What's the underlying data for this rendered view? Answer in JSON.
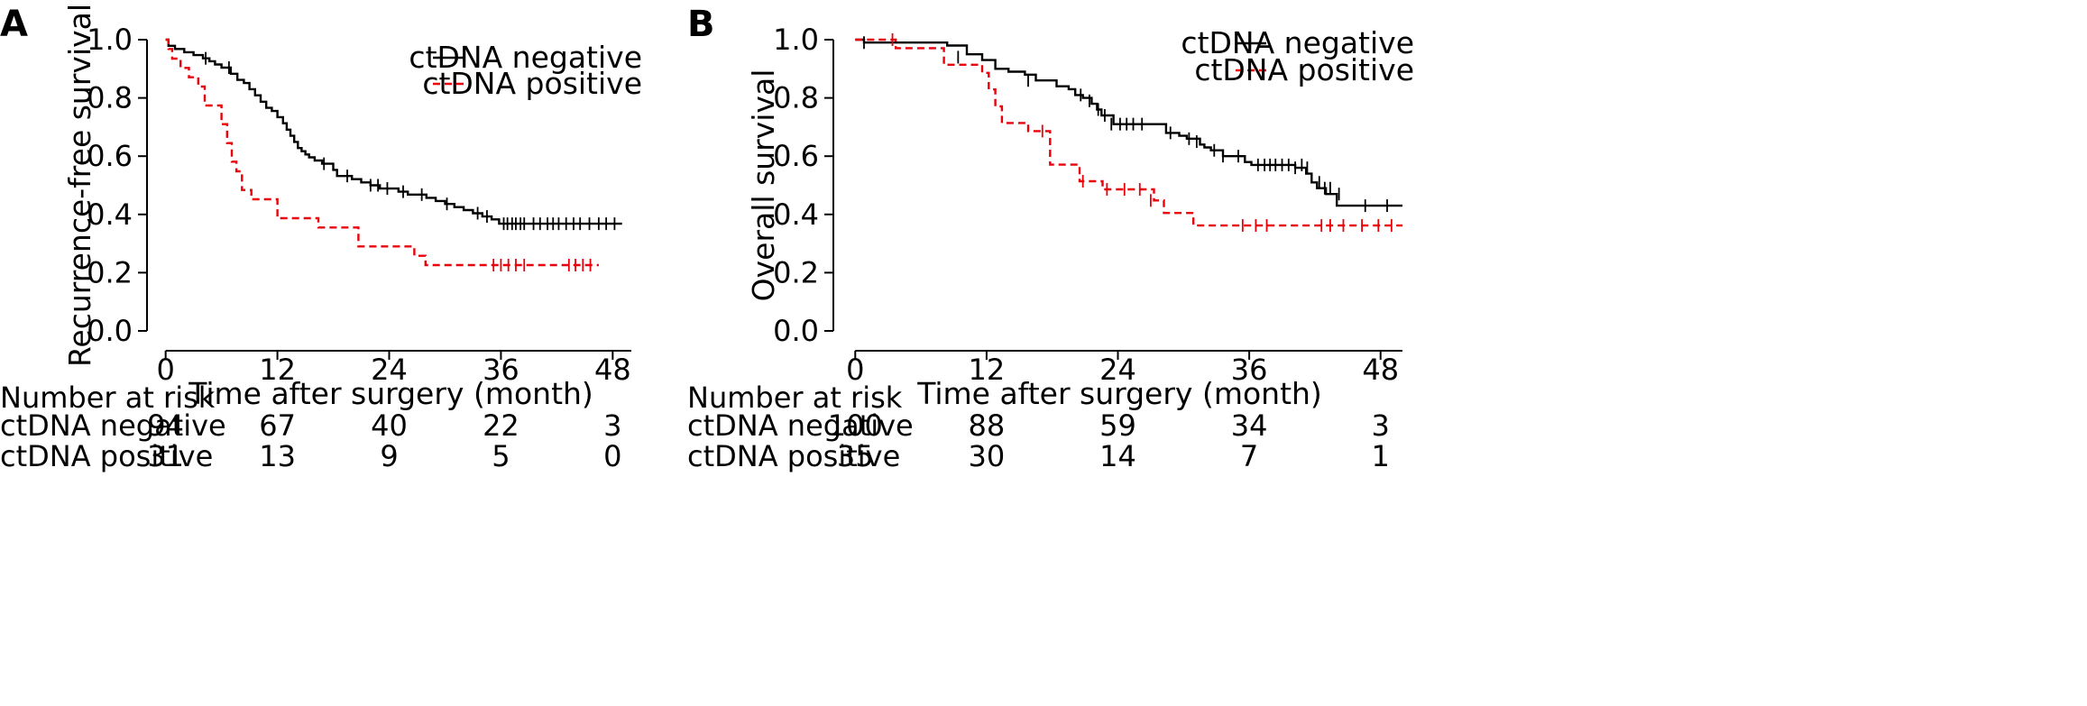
{
  "figure": {
    "background": "#ffffff"
  },
  "chart_data": [
    {
      "type": "line",
      "panel_label": "A",
      "xlabel": "Time after surgery (month)",
      "ylabel": "Recurrence-free survival",
      "xlim": [
        -2,
        50
      ],
      "ylim": [
        0,
        1.0
      ],
      "xticks": [
        0,
        12,
        24,
        36,
        48
      ],
      "yticks": [
        0.0,
        0.2,
        0.4,
        0.6,
        0.8,
        1.0
      ],
      "xtick_labels": [
        "0",
        "12",
        "24",
        "36",
        "48"
      ],
      "ytick_labels": [
        "0.0",
        "0.2",
        "0.4",
        "0.6",
        "0.8",
        "1.0"
      ],
      "legend_position": "top-right",
      "step": true,
      "series": [
        {
          "name": "ctDNA negative",
          "color": "#000000",
          "dash": "solid",
          "x": [
            0,
            0.3,
            1,
            2,
            3,
            4,
            4.7,
            5.3,
            6,
            7,
            7.7,
            8.4,
            9,
            9.6,
            10.2,
            10.8,
            11.4,
            12,
            12.6,
            13,
            13.4,
            13.8,
            14.2,
            14.6,
            15,
            15.4,
            16,
            16.8,
            18,
            18.4,
            19,
            20,
            21,
            22,
            22.4,
            23,
            24,
            25,
            26,
            27,
            28,
            29,
            30,
            31,
            32,
            33,
            34,
            35,
            35.8,
            49
          ],
          "y": [
            1.0,
            0.979,
            0.968,
            0.957,
            0.947,
            0.936,
            0.926,
            0.915,
            0.904,
            0.883,
            0.862,
            0.851,
            0.83,
            0.809,
            0.787,
            0.766,
            0.755,
            0.734,
            0.713,
            0.691,
            0.67,
            0.649,
            0.628,
            0.617,
            0.606,
            0.596,
            0.585,
            0.574,
            0.553,
            0.532,
            0.532,
            0.521,
            0.51,
            0.5,
            0.5,
            0.489,
            0.489,
            0.478,
            0.468,
            0.468,
            0.457,
            0.446,
            0.436,
            0.425,
            0.415,
            0.404,
            0.393,
            0.383,
            0.368,
            0.368
          ],
          "censor_x": [
            4.3,
            6.8,
            17,
            19.5,
            22,
            22.8,
            23.8,
            25.5,
            27.5,
            30.2,
            33.5,
            34.5,
            36.3,
            36.7,
            37.2,
            37.6,
            38.1,
            38.5,
            39.5,
            40.2,
            41,
            41.6,
            42.2,
            43,
            43.8,
            44.5,
            45.5,
            46.5,
            47.3,
            48.2
          ]
        },
        {
          "name": "ctDNA positive",
          "color": "#e8000b",
          "dash": "dashed",
          "x": [
            0,
            0.3,
            0.7,
            1.6,
            2.5,
            3.5,
            4.2,
            6,
            6.6,
            7.1,
            7.6,
            8.2,
            9.2,
            10,
            12,
            16.4,
            20.7,
            26.7,
            27.9,
            46.5
          ],
          "y": [
            1.0,
            0.968,
            0.935,
            0.903,
            0.871,
            0.839,
            0.774,
            0.71,
            0.645,
            0.581,
            0.548,
            0.484,
            0.452,
            0.452,
            0.387,
            0.355,
            0.29,
            0.258,
            0.226,
            0.226
          ],
          "censor_x": [
            35.2,
            36,
            36.8,
            37.6,
            38.5,
            43.3,
            44,
            44.8,
            45.6
          ]
        }
      ],
      "risk_table": {
        "title": "Number at risk",
        "rows": [
          {
            "label": "ctDNA negative",
            "values": [
              "94",
              "67",
              "40",
              "22",
              "3"
            ]
          },
          {
            "label": "ctDNA positive",
            "values": [
              "31",
              "13",
              "9",
              "5",
              "0"
            ]
          }
        ]
      }
    },
    {
      "type": "line",
      "panel_label": "B",
      "xlabel": "Time after surgery (month)",
      "ylabel": "Overall survival",
      "xlim": [
        -2,
        50
      ],
      "ylim": [
        0,
        1.0
      ],
      "xticks": [
        0,
        12,
        24,
        36,
        48
      ],
      "yticks": [
        0.0,
        0.2,
        0.4,
        0.6,
        0.8,
        1.0
      ],
      "xtick_labels": [
        "0",
        "12",
        "24",
        "36",
        "48"
      ],
      "ytick_labels": [
        "0.0",
        "0.2",
        "0.4",
        "0.6",
        "0.8",
        "1.0"
      ],
      "legend_position": "top-right",
      "step": true,
      "series": [
        {
          "name": "ctDNA negative",
          "color": "#000000",
          "dash": "solid",
          "x": [
            0,
            0.8,
            8.4,
            10.2,
            11.6,
            12.8,
            14,
            15.5,
            16.5,
            18.4,
            19.5,
            20.1,
            20.8,
            21.6,
            22.1,
            22.5,
            23.6,
            27,
            28.4,
            29.6,
            30.3,
            31.5,
            31.9,
            32.5,
            33.6,
            35.6,
            36.2,
            40.2,
            41.2,
            41.7,
            42.2,
            43,
            44,
            50
          ],
          "y": [
            1.0,
            0.99,
            0.98,
            0.95,
            0.93,
            0.9,
            0.89,
            0.88,
            0.86,
            0.84,
            0.83,
            0.81,
            0.8,
            0.78,
            0.76,
            0.74,
            0.71,
            0.71,
            0.68,
            0.67,
            0.66,
            0.64,
            0.63,
            0.62,
            0.6,
            0.58,
            0.57,
            0.56,
            0.54,
            0.51,
            0.49,
            0.47,
            0.43,
            0.43
          ],
          "censor_x": [
            0.8,
            9.4,
            15.8,
            20.6,
            21.4,
            22.2,
            22.8,
            23.4,
            24.2,
            24.8,
            25.4,
            26.2,
            28.8,
            30.5,
            31.2,
            32.8,
            33.6,
            35,
            36.8,
            37.4,
            37.9,
            38.4,
            39,
            39.6,
            40.2,
            40.8,
            41.3,
            42.4,
            42.9,
            43.4,
            44.2,
            46.6,
            48.6
          ],
          "censor_y": [
            0.99,
            0.94,
            0.86,
            0.81,
            0.79,
            0.76,
            0.74,
            0.71,
            0.71,
            0.71,
            0.71,
            0.71,
            0.68,
            0.66,
            0.65,
            0.62,
            0.6,
            0.6,
            0.57,
            0.57,
            0.57,
            0.57,
            0.57,
            0.57,
            0.56,
            0.57,
            0.56,
            0.51,
            0.49,
            0.49,
            0.47,
            0.43,
            0.43
          ]
        },
        {
          "name": "ctDNA positive",
          "color": "#e8000b",
          "dash": "dashed",
          "x": [
            0,
            3.7,
            8.1,
            11.6,
            12.2,
            12.8,
            13.4,
            15.8,
            17.8,
            20.5,
            21.1,
            22.6,
            27.3,
            28.2,
            30.9,
            50
          ],
          "y": [
            1.0,
            0.971,
            0.914,
            0.886,
            0.829,
            0.771,
            0.714,
            0.686,
            0.571,
            0.514,
            0.514,
            0.486,
            0.448,
            0.405,
            0.362,
            0.362
          ],
          "censor_x": [
            3.4,
            17.1,
            20.8,
            23,
            24.6,
            26,
            27,
            35.4,
            36.6,
            37.6,
            42.6,
            43.4,
            44.6,
            46.3,
            47.8,
            49
          ],
          "censor_y": [
            1.0,
            0.686,
            0.514,
            0.486,
            0.486,
            0.486,
            0.448,
            0.362,
            0.362,
            0.362,
            0.362,
            0.362,
            0.362,
            0.362,
            0.362,
            0.362
          ]
        }
      ],
      "risk_table": {
        "title": "Number at risk",
        "rows": [
          {
            "label": "ctDNA negative",
            "values": [
              "100",
              "88",
              "59",
              "34",
              "3"
            ]
          },
          {
            "label": "ctDNA positive",
            "values": [
              "35",
              "30",
              "14",
              "7",
              "1"
            ]
          }
        ]
      }
    }
  ]
}
